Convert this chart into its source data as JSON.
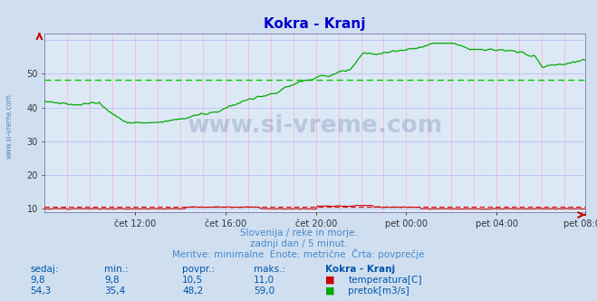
{
  "title": "Kokra - Kranj",
  "title_color": "#0000cc",
  "bg_color": "#d0dff0",
  "plot_bg_color": "#dce8f5",
  "grid_color_v": "#ff9999",
  "grid_color_h": "#aaaaff",
  "xlabel_ticks": [
    "čet 12:00",
    "čet 16:00",
    "čet 20:00",
    "pet 00:00",
    "pet 04:00",
    "pet 08:00"
  ],
  "yticks": [
    10,
    20,
    30,
    40,
    50
  ],
  "ylim": [
    9.0,
    62
  ],
  "watermark": "www.si-vreme.com",
  "subtitle1": "Slovenija / reke in morje.",
  "subtitle2": "zadnji dan / 5 minut.",
  "subtitle3": "Meritve: minimalne  Enote: metrične  Črta: povprečje",
  "subtitle_color": "#4488cc",
  "temp_color": "#cc0000",
  "flow_color": "#00aa00",
  "avg_flow_color": "#00cc00",
  "avg_temp_color": "#dd0000",
  "temp_avg": 10.5,
  "flow_avg": 48.2,
  "temp_min": 9.8,
  "temp_max": 11.0,
  "flow_min": 35.4,
  "flow_max": 59.0,
  "temp_current": "9,8",
  "flow_current": "54,3",
  "temp_min_str": "9,8",
  "flow_min_str": "35,4",
  "temp_avg_str": "10,5",
  "flow_avg_str": "48,2",
  "temp_max_str": "11,0",
  "flow_max_str": "59,0",
  "table_headers": [
    "sedaj:",
    "min.:",
    "povpr.:",
    "maks.:",
    "Kokra - Kranj"
  ],
  "table_color": "#0055aa",
  "legend_temp": "temperatura[C]",
  "legend_flow": "pretok[m3/s]",
  "left_label": "www.si-vreme.com",
  "n_points": 288
}
